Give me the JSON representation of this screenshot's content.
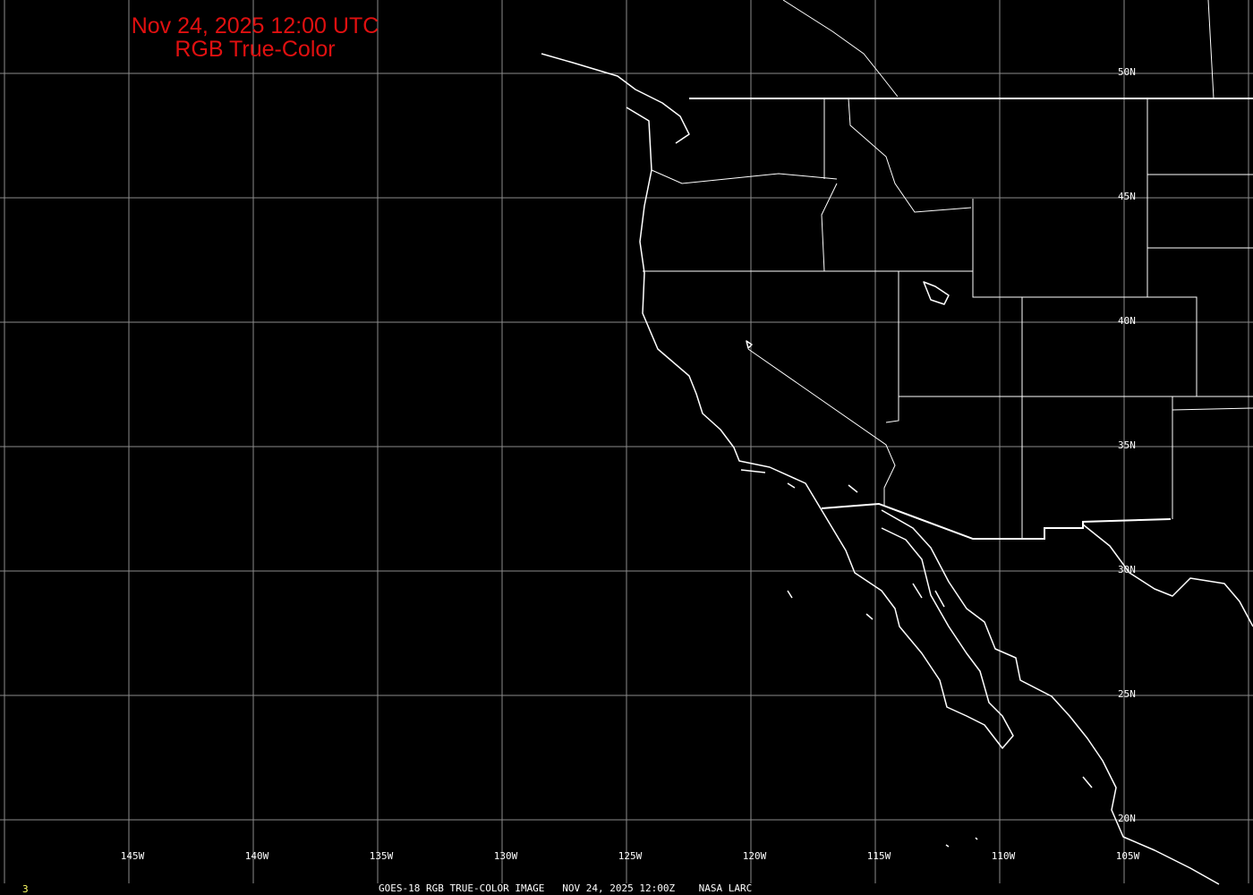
{
  "title": {
    "line1": "Nov 24, 2025 12:00 UTC",
    "line2": "RGB True-Color"
  },
  "title_color": "#e01010",
  "longitude_labels": [
    "145W",
    "140W",
    "135W",
    "130W",
    "125W",
    "120W",
    "115W",
    "110W",
    "105W"
  ],
  "latitude_labels": [
    "50N",
    "45N",
    "40N",
    "35N",
    "30N",
    "25N",
    "20N"
  ],
  "footer": {
    "frame_number": "3",
    "caption": "GOES-18 RGB TRUE-COLOR IMAGE   NOV 24, 2025 12:00Z    NASA LARC"
  },
  "colors": {
    "background": "#000000",
    "grid": "#8c8c8c",
    "borders": "#ffffff",
    "frame_number": "#ffff66"
  }
}
